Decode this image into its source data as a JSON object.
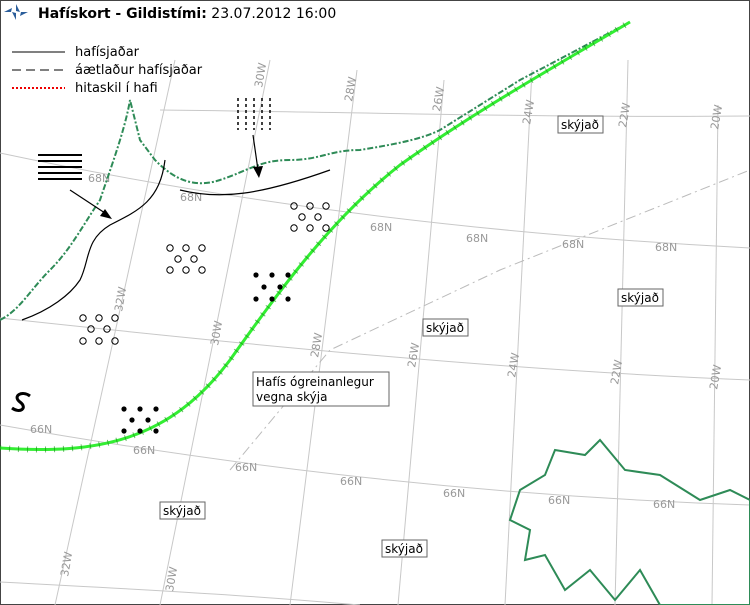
{
  "header": {
    "title": "Hafískort - Gildistími:",
    "date": "23.07.2012 16:00"
  },
  "legend": [
    "hafísjaðar",
    "áætlaður hafísjaðar",
    "hitaskil í hafi"
  ],
  "labels": {
    "cloudy": [
      "skýjað",
      "skýjað",
      "skýjað",
      "skýjað",
      "skýjað"
    ],
    "ice_unknown": [
      "Hafís ógreinanlegur",
      "vegna skýja"
    ]
  },
  "grid_labels": {
    "latitude": [
      "68N",
      "68N",
      "68N",
      "68N",
      "68N",
      "68N",
      "66N",
      "66N",
      "66N",
      "66N",
      "66N",
      "66N",
      "66N"
    ],
    "longitude": [
      "30W",
      "28W",
      "26W",
      "24W",
      "22W",
      "20W",
      "32W",
      "30W",
      "28W",
      "26W",
      "24W",
      "22W",
      "20W",
      "32W",
      "30W"
    ]
  }
}
